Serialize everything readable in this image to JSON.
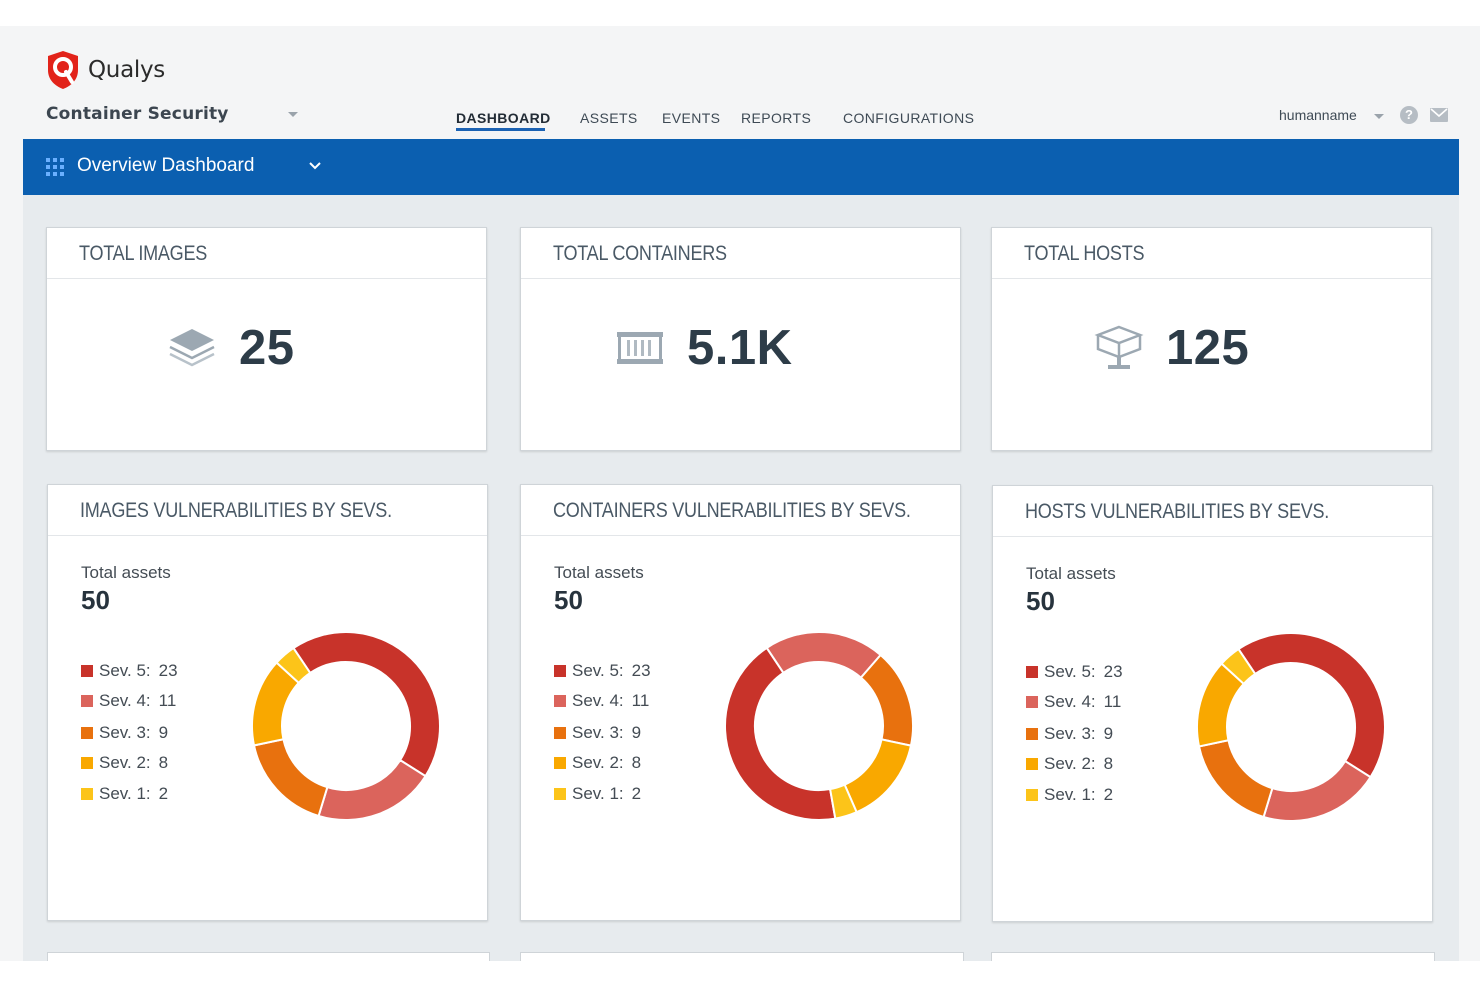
{
  "app": {
    "logo_text": "Qualys",
    "product_name": "Container Security"
  },
  "nav": {
    "items": [
      {
        "label": "DASHBOARD",
        "active": true
      },
      {
        "label": "ASSETS",
        "active": false
      },
      {
        "label": "EVENTS",
        "active": false
      },
      {
        "label": "REPORTS",
        "active": false
      },
      {
        "label": "CONFIGURATIONS",
        "active": false
      }
    ]
  },
  "user": {
    "name": "humanname",
    "help_icon": "question-circle-icon",
    "mail_icon": "envelope-icon"
  },
  "dashboard_bar": {
    "title": "Overview Dashboard",
    "icon": "grid-icon",
    "dropdown_icon": "chevron-down-icon"
  },
  "stats": [
    {
      "title": "TOTAL IMAGES",
      "value": "25",
      "icon": "layers-icon"
    },
    {
      "title": "TOTAL CONTAINERS",
      "value": "5.1K",
      "icon": "container-icon"
    },
    {
      "title": "TOTAL HOSTS",
      "value": "125",
      "icon": "host-icon"
    }
  ],
  "colors": {
    "accent": "#0b5fb0",
    "sev5": "#c8332a",
    "sev4": "#db645c",
    "sev3": "#e8710e",
    "sev2": "#f9a800",
    "sev1": "#fcc419"
  },
  "vuln_cards": [
    {
      "title": "IMAGES VULNERABILITIES BY SEVS.",
      "total_label": "Total assets",
      "total_value": "50",
      "legend": [
        {
          "label": "Sev. 5:",
          "count": "23"
        },
        {
          "label": "Sev. 4:",
          "count": "11"
        },
        {
          "label": "Sev. 3:",
          "count": "9"
        },
        {
          "label": "Sev. 2:",
          "count": "8"
        },
        {
          "label": "Sev. 1:",
          "count": "2"
        }
      ]
    },
    {
      "title": "CONTAINERS VULNERABILITIES BY SEVS.",
      "total_label": "Total assets",
      "total_value": "50",
      "legend": [
        {
          "label": "Sev. 5:",
          "count": "23"
        },
        {
          "label": "Sev. 4:",
          "count": "11"
        },
        {
          "label": "Sev. 3:",
          "count": "9"
        },
        {
          "label": "Sev. 2:",
          "count": "8"
        },
        {
          "label": "Sev. 1:",
          "count": "2"
        }
      ]
    },
    {
      "title": "HOSTS VULNERABILITIES BY SEVS.",
      "total_label": "Total assets",
      "total_value": "50",
      "legend": [
        {
          "label": "Sev. 5:",
          "count": "23"
        },
        {
          "label": "Sev. 4:",
          "count": "11"
        },
        {
          "label": "Sev. 3:",
          "count": "9"
        },
        {
          "label": "Sev. 2:",
          "count": "8"
        },
        {
          "label": "Sev. 1:",
          "count": "2"
        }
      ]
    }
  ],
  "chart_data": [
    {
      "type": "pie",
      "categories": [
        "Sev. 5",
        "Sev. 4",
        "Sev. 3",
        "Sev. 2",
        "Sev. 1"
      ],
      "values": [
        23,
        11,
        9,
        8,
        2
      ]
    },
    {
      "type": "pie",
      "categories": [
        "Sev. 5",
        "Sev. 4",
        "Sev. 3",
        "Sev. 2",
        "Sev. 1"
      ],
      "values": [
        23,
        11,
        9,
        8,
        2
      ]
    },
    {
      "type": "pie",
      "categories": [
        "Sev. 5",
        "Sev. 4",
        "Sev. 3",
        "Sev. 2",
        "Sev. 1"
      ],
      "values": [
        23,
        11,
        9,
        8,
        2
      ]
    }
  ]
}
